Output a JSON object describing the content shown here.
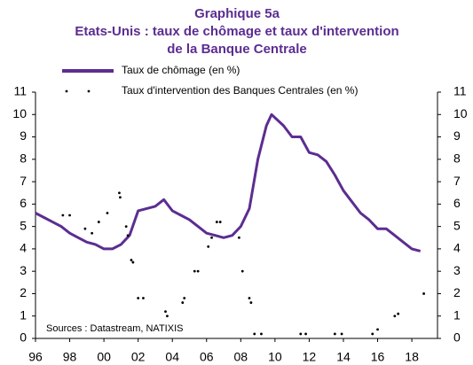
{
  "chart_data": {
    "type": "line",
    "title": [
      "Graphique 5a",
      "Etats-Unis : taux de chômage et taux d'intervention",
      "de la Banque Centrale"
    ],
    "annotation": "Sources : Datastream,  NATIXIS",
    "xlim": [
      1996,
      2019.5
    ],
    "xticks": [
      {
        "value": 1996,
        "label": "96"
      },
      {
        "value": 1998,
        "label": "98"
      },
      {
        "value": 2000,
        "label": "00"
      },
      {
        "value": 2002,
        "label": "02"
      },
      {
        "value": 2004,
        "label": "04"
      },
      {
        "value": 2006,
        "label": "06"
      },
      {
        "value": 2008,
        "label": "08"
      },
      {
        "value": 2010,
        "label": "10"
      },
      {
        "value": 2012,
        "label": "12"
      },
      {
        "value": 2014,
        "label": "14"
      },
      {
        "value": 2016,
        "label": "16"
      },
      {
        "value": 2018,
        "label": "18"
      }
    ],
    "ylim": [
      0,
      11
    ],
    "yticks": [
      0,
      1,
      2,
      3,
      4,
      5,
      6,
      7,
      8,
      9,
      10,
      11
    ],
    "y2lim": [
      0,
      11
    ],
    "y2ticks": [
      0,
      1,
      2,
      3,
      4,
      5,
      6,
      7,
      8,
      9,
      10,
      11
    ],
    "series": [
      {
        "name": "Taux de chômage (en %)",
        "color": "#5c2d91",
        "style": "line",
        "x": [
          1996.0,
          1996.5,
          1997.0,
          1997.5,
          1998.0,
          1998.5,
          1999.0,
          1999.5,
          2000.0,
          2000.5,
          2001.0,
          2001.5,
          2002.0,
          2002.5,
          2003.0,
          2003.5,
          2004.0,
          2004.5,
          2005.0,
          2005.5,
          2006.0,
          2006.5,
          2007.0,
          2007.5,
          2008.0,
          2008.5,
          2009.0,
          2009.5,
          2009.8,
          2010.5,
          2011.0,
          2011.5,
          2012.0,
          2012.5,
          2013.0,
          2013.5,
          2014.0,
          2014.5,
          2015.0,
          2015.5,
          2016.0,
          2016.5,
          2017.0,
          2017.5,
          2018.0,
          2018.5
        ],
        "values": [
          5.6,
          5.4,
          5.2,
          5.0,
          4.7,
          4.5,
          4.3,
          4.2,
          4.0,
          4.0,
          4.2,
          4.6,
          5.7,
          5.8,
          5.9,
          6.2,
          5.7,
          5.5,
          5.3,
          5.0,
          4.7,
          4.6,
          4.5,
          4.6,
          5.0,
          5.8,
          8.0,
          9.5,
          10.0,
          9.5,
          9.0,
          9.0,
          8.3,
          8.2,
          7.9,
          7.3,
          6.6,
          6.1,
          5.6,
          5.3,
          4.9,
          4.9,
          4.6,
          4.3,
          4.0,
          3.9
        ]
      },
      {
        "name": "Taux d'intervention des Banques Centrales (en %)",
        "color": "#000000",
        "style": "dots",
        "x": [
          1997.6,
          1998.0,
          1998.9,
          1999.3,
          1999.7,
          2000.2,
          2000.9,
          2000.95,
          2001.3,
          2001.4,
          2001.6,
          2001.7,
          2002.0,
          2002.3,
          2003.6,
          2003.7,
          2004.6,
          2004.7,
          2005.3,
          2005.5,
          2006.1,
          2006.3,
          2006.6,
          2006.8,
          2007.9,
          2008.1,
          2008.5,
          2008.6,
          2008.8,
          2009.2,
          2011.5,
          2011.8,
          2013.5,
          2013.9,
          2015.7,
          2016.0,
          2017.0,
          2017.2,
          2018.7
        ],
        "values": [
          5.5,
          5.5,
          4.9,
          4.7,
          5.2,
          5.6,
          6.5,
          6.3,
          5.0,
          4.6,
          3.5,
          3.4,
          1.8,
          1.8,
          1.2,
          1.0,
          1.6,
          1.8,
          3.0,
          3.0,
          4.1,
          4.5,
          5.2,
          5.2,
          4.5,
          3.0,
          1.8,
          1.6,
          0.2,
          0.2,
          0.2,
          0.2,
          0.2,
          0.2,
          0.2,
          0.4,
          1.0,
          1.1,
          2.0
        ]
      }
    ]
  }
}
